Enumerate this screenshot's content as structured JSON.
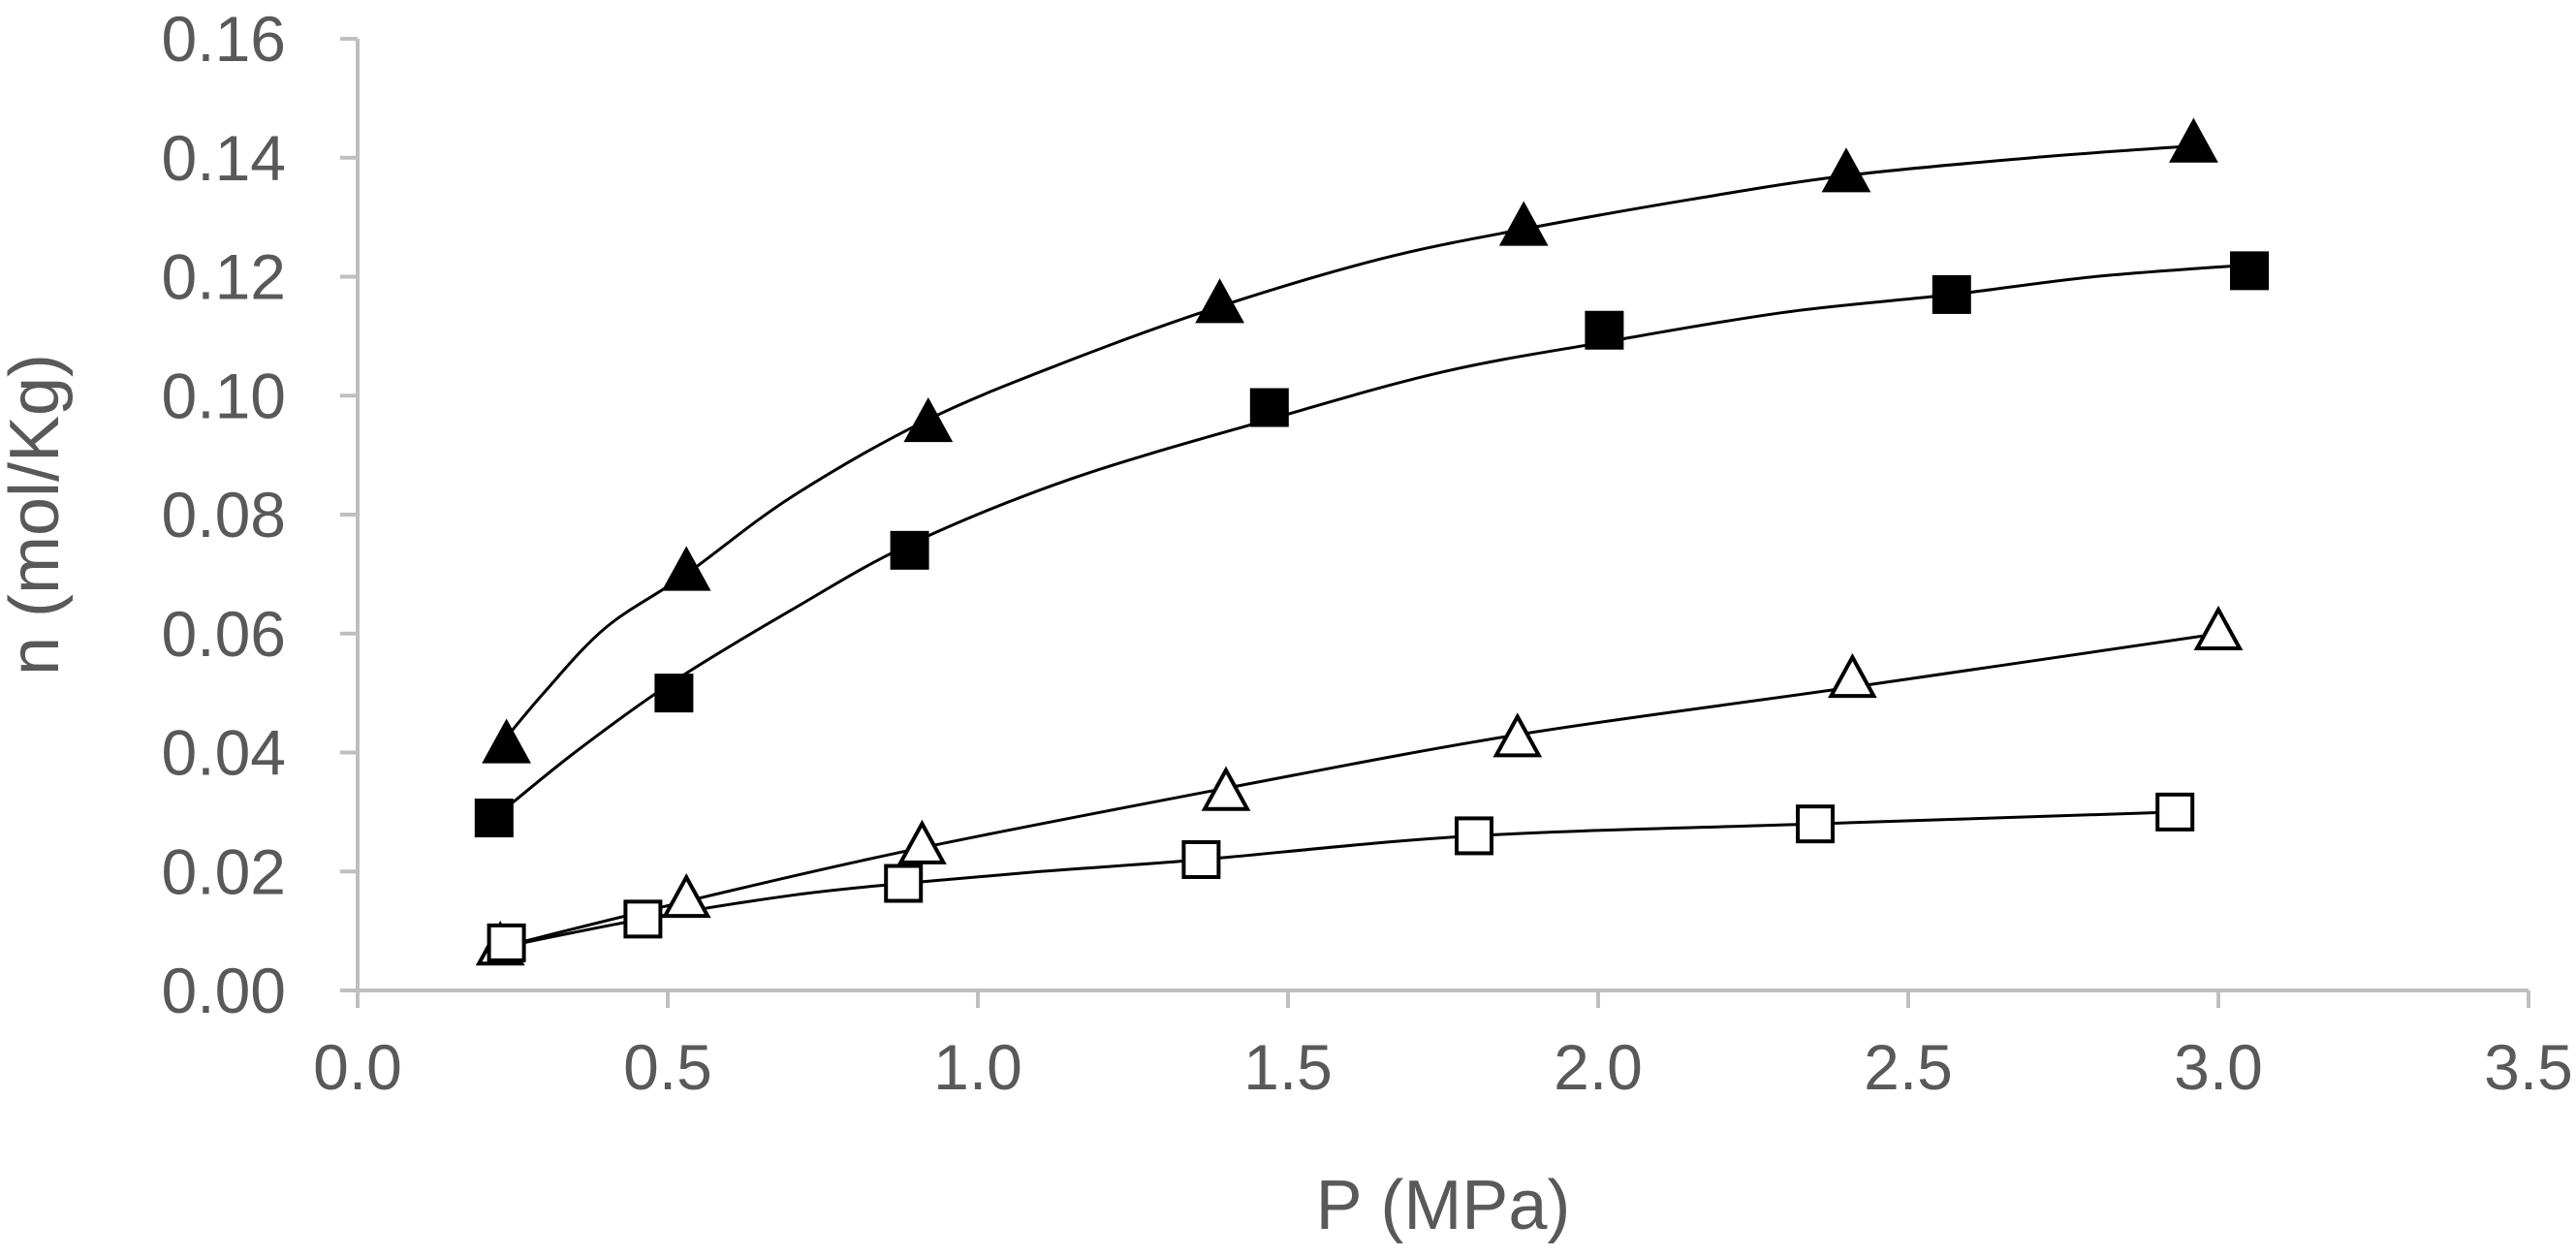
{
  "chart_data": {
    "type": "scatter",
    "title": "",
    "xlabel": "P (MPa)",
    "ylabel": "n (mol/Kg)",
    "xlim": [
      0,
      3.5
    ],
    "ylim": [
      0,
      0.16
    ],
    "x_ticks": [
      "0.0",
      "0.5",
      "1.0",
      "1.5",
      "2.0",
      "2.5",
      "3.0",
      "3.5"
    ],
    "y_ticks": [
      "0.00",
      "0.02",
      "0.04",
      "0.06",
      "0.08",
      "0.10",
      "0.12",
      "0.14",
      "0.16"
    ],
    "grid": false,
    "legend": "none",
    "series": [
      {
        "name": "filled-triangle",
        "marker": "triangle",
        "filled": true,
        "x": [
          0.24,
          0.53,
          0.92,
          1.39,
          1.88,
          2.4,
          2.96
        ],
        "y": [
          0.041,
          0.07,
          0.095,
          0.115,
          0.128,
          0.137,
          0.142
        ],
        "fit_x": [
          0.22,
          0.3,
          0.4,
          0.53,
          0.7,
          0.92,
          1.15,
          1.39,
          1.65,
          1.88,
          2.15,
          2.4,
          2.7,
          2.96
        ],
        "fit_y": [
          0.04,
          0.05,
          0.061,
          0.07,
          0.083,
          0.096,
          0.106,
          0.115,
          0.123,
          0.128,
          0.133,
          0.137,
          0.14,
          0.142
        ]
      },
      {
        "name": "filled-square",
        "marker": "square",
        "filled": true,
        "x": [
          0.22,
          0.51,
          0.89,
          1.47,
          2.01,
          2.57,
          3.05
        ],
        "y": [
          0.029,
          0.05,
          0.074,
          0.098,
          0.111,
          0.117,
          0.121
        ],
        "fit_x": [
          0.22,
          0.35,
          0.51,
          0.7,
          0.89,
          1.15,
          1.47,
          1.75,
          2.01,
          2.3,
          2.57,
          2.8,
          3.05
        ],
        "fit_y": [
          0.029,
          0.04,
          0.052,
          0.064,
          0.075,
          0.086,
          0.096,
          0.104,
          0.109,
          0.114,
          0.117,
          0.12,
          0.122
        ]
      },
      {
        "name": "open-triangle",
        "marker": "triangle",
        "filled": false,
        "x": [
          0.23,
          0.53,
          0.91,
          1.4,
          1.87,
          2.41,
          3.0
        ],
        "y": [
          0.007,
          0.015,
          0.024,
          0.033,
          0.042,
          0.052,
          0.06
        ],
        "fit_x": [
          0.22,
          0.53,
          0.91,
          1.4,
          1.87,
          2.41,
          3.0
        ],
        "fit_y": [
          0.007,
          0.015,
          0.024,
          0.034,
          0.043,
          0.051,
          0.06
        ]
      },
      {
        "name": "open-square",
        "marker": "square",
        "filled": false,
        "x": [
          0.24,
          0.46,
          0.88,
          1.36,
          1.8,
          2.35,
          2.93
        ],
        "y": [
          0.008,
          0.012,
          0.018,
          0.022,
          0.026,
          0.028,
          0.03
        ],
        "fit_x": [
          0.22,
          0.46,
          0.7,
          0.88,
          1.1,
          1.36,
          1.8,
          2.35,
          2.93
        ],
        "fit_y": [
          0.007,
          0.012,
          0.016,
          0.018,
          0.02,
          0.022,
          0.026,
          0.028,
          0.03
        ]
      }
    ]
  }
}
